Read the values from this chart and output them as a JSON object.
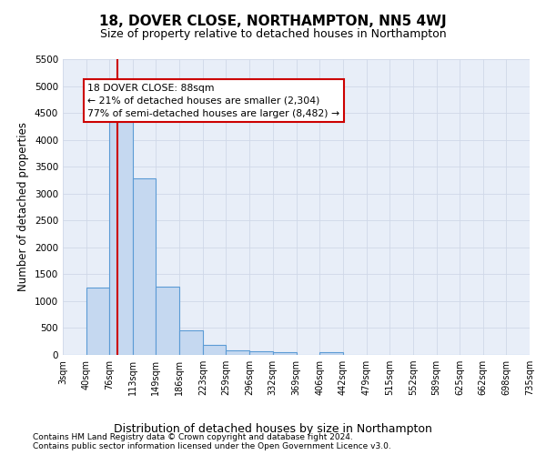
{
  "title": "18, DOVER CLOSE, NORTHAMPTON, NN5 4WJ",
  "subtitle": "Size of property relative to detached houses in Northampton",
  "xlabel": "Distribution of detached houses by size in Northampton",
  "ylabel": "Number of detached properties",
  "footer_line1": "Contains HM Land Registry data © Crown copyright and database right 2024.",
  "footer_line2": "Contains public sector information licensed under the Open Government Licence v3.0.",
  "annotation_line0": "18 DOVER CLOSE: 88sqm",
  "annotation_line1": "← 21% of detached houses are smaller (2,304)",
  "annotation_line2": "77% of semi-detached houses are larger (8,482) →",
  "property_size": 88,
  "bin_edges": [
    3,
    40,
    76,
    113,
    149,
    186,
    223,
    259,
    296,
    332,
    369,
    406,
    442,
    479,
    515,
    552,
    589,
    625,
    662,
    698,
    735
  ],
  "bin_counts": [
    0,
    1250,
    4330,
    3280,
    1270,
    450,
    180,
    90,
    65,
    50,
    0,
    50,
    0,
    0,
    0,
    0,
    0,
    0,
    0,
    0
  ],
  "bar_color": "#c5d8f0",
  "bar_edge_color": "#5b9bd5",
  "vline_color": "#cc0000",
  "grid_color": "#d0d8e8",
  "ylim": [
    0,
    5500
  ],
  "yticks": [
    0,
    500,
    1000,
    1500,
    2000,
    2500,
    3000,
    3500,
    4000,
    4500,
    5000,
    5500
  ],
  "bg_color": "#e8eef8",
  "annotation_box_color": "#cc0000",
  "title_fontsize": 11,
  "subtitle_fontsize": 9
}
